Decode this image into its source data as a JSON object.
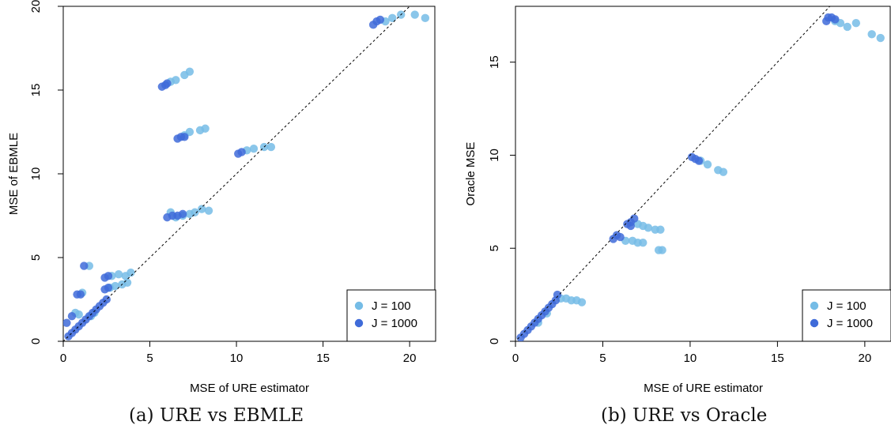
{
  "colors": {
    "j100": "#75bce6",
    "j1000": "#3f6bd9",
    "axis": "#000000",
    "diagonal": "#000000"
  },
  "chart_data": [
    {
      "type": "scatter",
      "title": "",
      "xlabel": "MSE of URE estimator",
      "ylabel": "MSE of EBMLE",
      "xlim": [
        0,
        21.5
      ],
      "ylim": [
        0,
        20
      ],
      "xticks": [
        "0",
        "5",
        "10",
        "15",
        "20"
      ],
      "yticks": [
        "0",
        "5",
        "10",
        "15",
        "20"
      ],
      "xtick_values": [
        0,
        5,
        10,
        15,
        20
      ],
      "ytick_values": [
        0,
        5,
        10,
        15,
        20
      ],
      "reference_line": "y = x (dashed)",
      "legend_position": "bottom-right",
      "caption": "(a) URE vs EBMLE",
      "series": [
        {
          "name": "J = 100",
          "points": [
            [
              20.3,
              19.5
            ],
            [
              20.9,
              19.3
            ],
            [
              19.5,
              19.5
            ],
            [
              19.0,
              19.3
            ],
            [
              18.6,
              19.1
            ],
            [
              7.3,
              16.1
            ],
            [
              7.0,
              15.9
            ],
            [
              6.5,
              15.6
            ],
            [
              6.2,
              15.5
            ],
            [
              8.2,
              12.7
            ],
            [
              7.9,
              12.6
            ],
            [
              7.3,
              12.5
            ],
            [
              7.0,
              12.3
            ],
            [
              12.0,
              11.6
            ],
            [
              11.6,
              11.6
            ],
            [
              11.0,
              11.5
            ],
            [
              10.6,
              11.4
            ],
            [
              8.4,
              7.8
            ],
            [
              8.0,
              7.9
            ],
            [
              7.6,
              7.7
            ],
            [
              7.3,
              7.6
            ],
            [
              6.9,
              7.5
            ],
            [
              6.5,
              7.4
            ],
            [
              6.2,
              7.7
            ],
            [
              3.9,
              4.1
            ],
            [
              3.6,
              3.9
            ],
            [
              3.2,
              4.0
            ],
            [
              2.8,
              3.9
            ],
            [
              3.7,
              3.5
            ],
            [
              3.4,
              3.4
            ],
            [
              3.0,
              3.3
            ],
            [
              2.7,
              3.2
            ],
            [
              1.5,
              4.5
            ],
            [
              1.1,
              2.9
            ],
            [
              0.7,
              1.7
            ],
            [
              0.9,
              1.6
            ],
            [
              1.6,
              1.5
            ],
            [
              1.8,
              1.7
            ]
          ]
        },
        {
          "name": "J = 1000",
          "points": [
            [
              17.9,
              18.9
            ],
            [
              18.1,
              19.1
            ],
            [
              18.3,
              19.2
            ],
            [
              5.7,
              15.2
            ],
            [
              5.9,
              15.3
            ],
            [
              6.0,
              15.4
            ],
            [
              6.6,
              12.1
            ],
            [
              6.8,
              12.2
            ],
            [
              7.0,
              12.2
            ],
            [
              10.1,
              11.2
            ],
            [
              10.3,
              11.3
            ],
            [
              6.0,
              7.4
            ],
            [
              6.3,
              7.5
            ],
            [
              6.6,
              7.5
            ],
            [
              6.9,
              7.6
            ],
            [
              1.2,
              4.5
            ],
            [
              1.0,
              2.8
            ],
            [
              0.8,
              2.8
            ],
            [
              2.4,
              3.8
            ],
            [
              2.6,
              3.9
            ],
            [
              2.4,
              3.1
            ],
            [
              2.6,
              3.2
            ],
            [
              0.2,
              1.1
            ],
            [
              0.5,
              1.5
            ],
            [
              0.3,
              0.3
            ],
            [
              0.5,
              0.5
            ],
            [
              0.7,
              0.7
            ],
            [
              0.9,
              0.9
            ],
            [
              1.1,
              1.1
            ],
            [
              1.3,
              1.3
            ],
            [
              1.5,
              1.5
            ],
            [
              1.7,
              1.7
            ],
            [
              1.9,
              1.9
            ],
            [
              2.1,
              2.1
            ],
            [
              2.3,
              2.3
            ],
            [
              2.5,
              2.5
            ]
          ]
        }
      ]
    },
    {
      "type": "scatter",
      "title": "",
      "xlabel": "MSE of URE estimator",
      "ylabel": "Oracle MSE",
      "xlim": [
        0,
        21.5
      ],
      "ylim": [
        0,
        18
      ],
      "xticks": [
        "0",
        "5",
        "10",
        "15",
        "20"
      ],
      "yticks": [
        "0",
        "5",
        "10",
        "15"
      ],
      "xtick_values": [
        0,
        5,
        10,
        15,
        20
      ],
      "ytick_values": [
        0,
        5,
        10,
        15
      ],
      "reference_line": "y = x (dashed)",
      "legend_position": "bottom-right",
      "caption": "(b) URE vs Oracle",
      "series": [
        {
          "name": "J = 100",
          "points": [
            [
              20.9,
              16.3
            ],
            [
              20.4,
              16.5
            ],
            [
              19.5,
              17.1
            ],
            [
              19.0,
              16.9
            ],
            [
              18.6,
              17.1
            ],
            [
              18.3,
              17.2
            ],
            [
              11.9,
              9.1
            ],
            [
              11.6,
              9.2
            ],
            [
              11.0,
              9.5
            ],
            [
              10.6,
              9.7
            ],
            [
              8.3,
              6.0
            ],
            [
              8.0,
              6.0
            ],
            [
              7.6,
              6.1
            ],
            [
              7.3,
              6.2
            ],
            [
              7.0,
              6.3
            ],
            [
              8.4,
              4.9
            ],
            [
              8.2,
              4.9
            ],
            [
              7.3,
              5.3
            ],
            [
              7.0,
              5.3
            ],
            [
              6.7,
              5.4
            ],
            [
              6.3,
              5.4
            ],
            [
              3.8,
              2.1
            ],
            [
              3.5,
              2.2
            ],
            [
              3.2,
              2.2
            ],
            [
              2.9,
              2.3
            ],
            [
              2.6,
              2.3
            ],
            [
              1.8,
              1.5
            ],
            [
              1.3,
              1.0
            ]
          ]
        },
        {
          "name": "J = 1000",
          "points": [
            [
              17.8,
              17.2
            ],
            [
              17.9,
              17.4
            ],
            [
              18.1,
              17.4
            ],
            [
              18.3,
              17.3
            ],
            [
              10.1,
              9.9
            ],
            [
              10.3,
              9.8
            ],
            [
              10.5,
              9.7
            ],
            [
              6.8,
              6.6
            ],
            [
              6.6,
              6.4
            ],
            [
              6.4,
              6.3
            ],
            [
              6.6,
              6.2
            ],
            [
              5.8,
              5.7
            ],
            [
              5.6,
              5.5
            ],
            [
              6.0,
              5.6
            ],
            [
              0.3,
              0.2
            ],
            [
              0.5,
              0.4
            ],
            [
              0.7,
              0.6
            ],
            [
              0.9,
              0.8
            ],
            [
              1.1,
              1.0
            ],
            [
              1.3,
              1.2
            ],
            [
              1.5,
              1.4
            ],
            [
              1.7,
              1.6
            ],
            [
              1.9,
              1.8
            ],
            [
              2.1,
              2.0
            ],
            [
              2.3,
              2.2
            ],
            [
              2.4,
              2.5
            ]
          ]
        }
      ]
    }
  ]
}
